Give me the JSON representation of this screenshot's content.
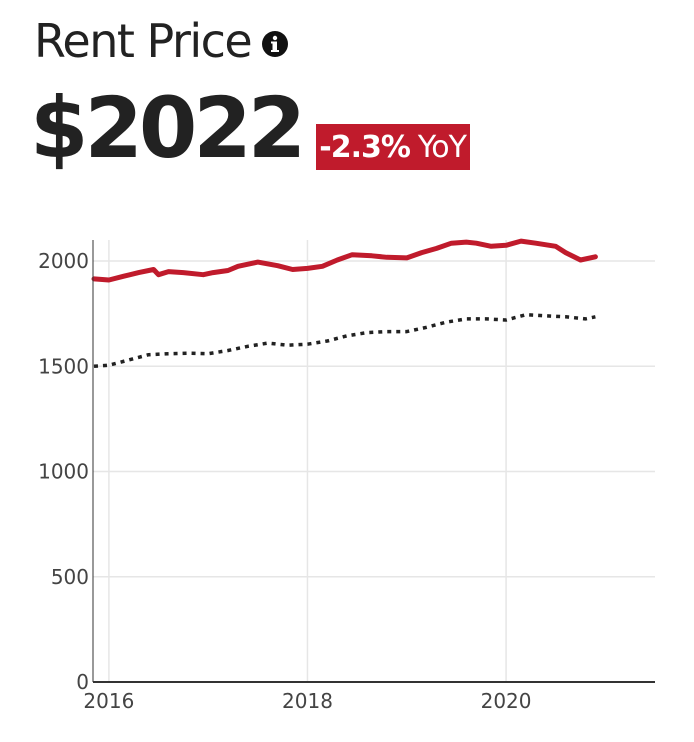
{
  "header": {
    "title": "Rent Price",
    "info_icon": "info-icon",
    "price": "$2022",
    "yoy_change": "-2.3%",
    "yoy_label": "YoY"
  },
  "colors": {
    "accent": "#c01b2c",
    "text": "#222222",
    "grid": "#e6e6e6",
    "secondary_series": "#222222"
  },
  "chart_data": {
    "type": "line",
    "title": "",
    "xlabel": "",
    "ylabel": "",
    "xlim": [
      2015.84,
      2021.5
    ],
    "ylim": [
      0,
      2100
    ],
    "y_ticks": [
      0,
      500,
      1000,
      1500,
      2000
    ],
    "x_ticks": [
      2016,
      2018,
      2020
    ],
    "y_tick_labels": [
      "0",
      "500",
      "1000",
      "1500",
      "2000"
    ],
    "x_tick_labels": [
      "2016",
      "2018",
      "2020"
    ],
    "grid": true,
    "legend": "none",
    "series": [
      {
        "style": "solid",
        "color": "#c01b2c",
        "x": [
          2015.85,
          2016.0,
          2016.15,
          2016.3,
          2016.45,
          2016.5,
          2016.6,
          2016.75,
          2016.95,
          2017.05,
          2017.2,
          2017.3,
          2017.5,
          2017.7,
          2017.85,
          2018.0,
          2018.15,
          2018.3,
          2018.45,
          2018.65,
          2018.8,
          2019.0,
          2019.15,
          2019.3,
          2019.45,
          2019.6,
          2019.7,
          2019.85,
          2020.0,
          2020.15,
          2020.3,
          2020.5,
          2020.6,
          2020.75,
          2020.9
        ],
        "y": [
          1915,
          1910,
          1928,
          1945,
          1960,
          1935,
          1950,
          1945,
          1935,
          1945,
          1955,
          1975,
          1995,
          1978,
          1960,
          1965,
          1975,
          2005,
          2030,
          2025,
          2018,
          2015,
          2040,
          2060,
          2085,
          2090,
          2085,
          2070,
          2075,
          2095,
          2085,
          2070,
          2040,
          2005,
          2020
        ]
      },
      {
        "style": "dotted",
        "color": "#222222",
        "x": [
          2015.85,
          2016.0,
          2016.2,
          2016.4,
          2016.6,
          2016.8,
          2017.0,
          2017.2,
          2017.4,
          2017.6,
          2017.8,
          2018.0,
          2018.2,
          2018.4,
          2018.6,
          2018.8,
          2019.0,
          2019.2,
          2019.4,
          2019.6,
          2019.8,
          2020.0,
          2020.2,
          2020.4,
          2020.6,
          2020.8,
          2020.9
        ],
        "y": [
          1500,
          1505,
          1530,
          1555,
          1560,
          1562,
          1560,
          1575,
          1595,
          1610,
          1600,
          1605,
          1620,
          1645,
          1660,
          1665,
          1665,
          1685,
          1710,
          1725,
          1725,
          1720,
          1745,
          1740,
          1735,
          1725,
          1735
        ]
      }
    ]
  }
}
